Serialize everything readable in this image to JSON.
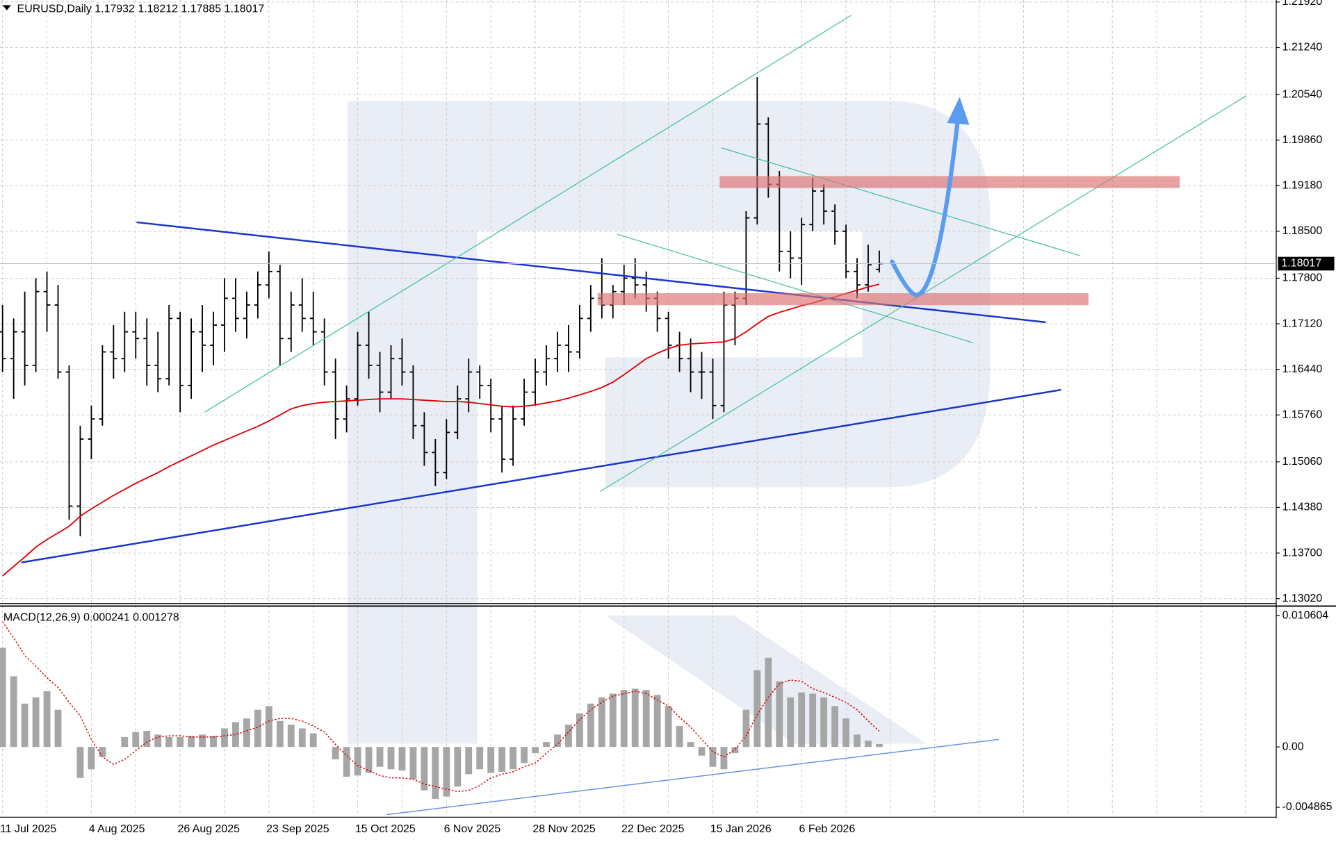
{
  "chart_data": [
    {
      "type": "ohlc",
      "title": "EURUSD,Daily",
      "categories": [
        "11 Jul 2025",
        null,
        null,
        null,
        null,
        null,
        null,
        null,
        "4 Aug 2025",
        null,
        null,
        null,
        null,
        null,
        null,
        null,
        "26 Aug 2025",
        null,
        null,
        null,
        null,
        null,
        null,
        null,
        "23 Sep 2025",
        null,
        null,
        null,
        null,
        null,
        null,
        null,
        "15 Oct 2025",
        null,
        null,
        null,
        null,
        null,
        null,
        null,
        "6 Nov 2025",
        null,
        null,
        null,
        null,
        null,
        null,
        null,
        "28 Nov 2025",
        null,
        null,
        null,
        null,
        null,
        null,
        null,
        "22 Dec 2025",
        null,
        null,
        null,
        null,
        null,
        null,
        null,
        "15 Jan 2026",
        null,
        null,
        null,
        null,
        null,
        null,
        null,
        "6 Feb 2026",
        null,
        null,
        null,
        null,
        null,
        null,
        null
      ],
      "open": [
        1.17,
        1.166,
        1.17,
        1.165,
        1.176,
        1.174,
        1.164,
        1.144,
        1.154,
        1.157,
        1.167,
        1.166,
        1.17,
        1.169,
        1.165,
        1.163,
        1.172,
        1.162,
        1.17,
        1.168,
        1.171,
        1.175,
        1.172,
        1.174,
        1.177,
        1.179,
        1.169,
        1.174,
        1.172,
        1.17,
        1.164,
        1.157,
        1.16,
        1.168,
        1.165,
        1.161,
        1.166,
        1.164,
        1.156,
        1.152,
        1.149,
        1.155,
        1.16,
        1.164,
        1.162,
        1.157,
        1.151,
        1.157,
        1.161,
        1.164,
        1.166,
        1.168,
        1.167,
        1.172,
        1.175,
        1.174,
        1.176,
        1.178,
        1.177,
        1.175,
        1.172,
        1.168,
        1.166,
        1.164,
        1.164,
        1.159,
        1.174,
        1.175,
        1.187,
        1.201,
        1.192,
        1.182,
        1.181,
        1.186,
        1.191,
        1.188,
        1.185,
        1.179,
        1.177,
        1.17932
      ],
      "high": [
        1.174,
        1.172,
        1.176,
        1.178,
        1.179,
        1.177,
        1.165,
        1.156,
        1.159,
        1.168,
        1.171,
        1.173,
        1.173,
        1.172,
        1.17,
        1.174,
        1.173,
        1.172,
        1.174,
        1.173,
        1.178,
        1.178,
        1.176,
        1.179,
        1.182,
        1.18,
        1.176,
        1.178,
        1.176,
        1.172,
        1.166,
        1.162,
        1.17,
        1.173,
        1.167,
        1.168,
        1.169,
        1.165,
        1.158,
        1.154,
        1.157,
        1.162,
        1.166,
        1.165,
        1.163,
        1.159,
        1.159,
        1.163,
        1.166,
        1.168,
        1.17,
        1.171,
        1.174,
        1.177,
        1.181,
        1.177,
        1.18,
        1.181,
        1.179,
        1.176,
        1.173,
        1.17,
        1.169,
        1.167,
        1.166,
        1.176,
        1.176,
        1.188,
        1.208,
        1.202,
        1.194,
        1.185,
        1.187,
        1.193,
        1.192,
        1.189,
        1.186,
        1.181,
        1.183,
        1.18212
      ],
      "low": [
        1.164,
        1.16,
        1.162,
        1.164,
        1.17,
        1.163,
        1.142,
        1.1395,
        1.151,
        1.156,
        1.163,
        1.164,
        1.166,
        1.162,
        1.161,
        1.162,
        1.158,
        1.16,
        1.164,
        1.165,
        1.167,
        1.17,
        1.169,
        1.172,
        1.175,
        1.165,
        1.167,
        1.17,
        1.168,
        1.162,
        1.154,
        1.155,
        1.159,
        1.163,
        1.158,
        1.16,
        1.162,
        1.154,
        1.15,
        1.147,
        1.148,
        1.154,
        1.158,
        1.16,
        1.155,
        1.149,
        1.15,
        1.156,
        1.159,
        1.162,
        1.164,
        1.164,
        1.166,
        1.17,
        1.172,
        1.172,
        1.174,
        1.175,
        1.173,
        1.17,
        1.166,
        1.164,
        1.161,
        1.16,
        1.157,
        1.158,
        1.168,
        1.174,
        1.186,
        1.19,
        1.179,
        1.178,
        1.177,
        1.185,
        1.186,
        1.183,
        1.178,
        1.175,
        1.176,
        1.17885
      ],
      "close": [
        1.166,
        1.17,
        1.165,
        1.176,
        1.174,
        1.164,
        1.144,
        1.154,
        1.157,
        1.167,
        1.166,
        1.17,
        1.169,
        1.165,
        1.163,
        1.172,
        1.162,
        1.17,
        1.168,
        1.171,
        1.175,
        1.172,
        1.174,
        1.177,
        1.179,
        1.169,
        1.174,
        1.172,
        1.17,
        1.164,
        1.157,
        1.16,
        1.168,
        1.165,
        1.161,
        1.166,
        1.164,
        1.156,
        1.152,
        1.149,
        1.155,
        1.16,
        1.164,
        1.162,
        1.157,
        1.151,
        1.157,
        1.161,
        1.164,
        1.166,
        1.168,
        1.167,
        1.172,
        1.175,
        1.174,
        1.176,
        1.178,
        1.177,
        1.175,
        1.172,
        1.168,
        1.166,
        1.164,
        1.164,
        1.159,
        1.174,
        1.175,
        1.187,
        1.201,
        1.192,
        1.182,
        1.181,
        1.186,
        1.191,
        1.188,
        1.185,
        1.179,
        1.177,
        1.18,
        1.18017
      ],
      "color": "#000000",
      "moving_average": {
        "color": "#e00000",
        "values": [
          1.1336,
          1.135,
          1.1364,
          1.1379,
          1.139,
          1.14,
          1.141,
          1.1425,
          1.1436,
          1.1446,
          1.1456,
          1.1465,
          1.1474,
          1.1482,
          1.149,
          1.1499,
          1.1507,
          1.1515,
          1.1523,
          1.1531,
          1.1538,
          1.1545,
          1.1552,
          1.1559,
          1.1567,
          1.1576,
          1.1585,
          1.159,
          1.1593,
          1.1595,
          1.1596,
          1.1597,
          1.1598,
          1.1599,
          1.16,
          1.16,
          1.16,
          1.1599,
          1.1598,
          1.1597,
          1.1596,
          1.1596,
          1.1595,
          1.1593,
          1.1591,
          1.1589,
          1.1588,
          1.1589,
          1.1591,
          1.1594,
          1.1597,
          1.1601,
          1.1606,
          1.1611,
          1.1617,
          1.1625,
          1.1636,
          1.1648,
          1.166,
          1.1668,
          1.1675,
          1.168,
          1.1682,
          1.1683,
          1.1684,
          1.1685,
          1.169,
          1.17,
          1.1712,
          1.1723,
          1.1729,
          1.1734,
          1.1739,
          1.1743,
          1.1748,
          1.1752,
          1.1757,
          1.1762,
          1.1767,
          1.1771
        ]
      },
      "ylim": [
        1.1296,
        1.2195
      ],
      "yticks": [
        {
          "value": 1.2192,
          "label": "1.21920"
        },
        {
          "value": 1.2124,
          "label": "1.21240"
        },
        {
          "value": 1.2054,
          "label": "1.20540"
        },
        {
          "value": 1.1986,
          "label": "1.19860"
        },
        {
          "value": 1.1918,
          "label": "1.19180"
        },
        {
          "value": 1.185,
          "label": "1.18500"
        },
        {
          "value": 1.178,
          "label": "1.17800"
        },
        {
          "value": 1.1712,
          "label": "1.17120"
        },
        {
          "value": 1.1644,
          "label": "1.16440"
        },
        {
          "value": 1.1576,
          "label": "1.15760"
        },
        {
          "value": 1.1506,
          "label": "1.15060"
        },
        {
          "value": 1.1438,
          "label": "1.14380"
        },
        {
          "value": 1.137,
          "label": "1.13700"
        },
        {
          "value": 1.1302,
          "label": "1.13020"
        }
      ],
      "grid": true
    },
    {
      "type": "macd",
      "title": "MACD(12,26,9)",
      "histogram": {
        "color": "#a6a6a6",
        "values": [
          0.008,
          0.0057,
          0.0035,
          0.004,
          0.0045,
          0.003,
          0,
          -0.0025,
          -0.0018,
          -0.0008,
          0,
          0.0008,
          0.0012,
          0.0013,
          0.001,
          0.0008,
          0.0008,
          0.0009,
          0.001,
          0.0009,
          0.0015,
          0.002,
          0.0023,
          0.003,
          0.0033,
          0.0021,
          0.0018,
          0.0015,
          0.0011,
          0,
          -0.001,
          -0.0024,
          -0.0023,
          -0.0021,
          -0.0016,
          -0.0018,
          -0.0019,
          -0.0026,
          -0.0035,
          -0.0042,
          -0.004,
          -0.0032,
          -0.0022,
          -0.0018,
          -0.0021,
          -0.002,
          -0.0018,
          -0.0013,
          -0.0005,
          0.0004,
          0.001,
          0.0018,
          0.0027,
          0.0035,
          0.004,
          0.0043,
          0.0046,
          0.0047,
          0.0046,
          0.0042,
          0.0033,
          0.0017,
          0.0004,
          -0.0007,
          -0.0016,
          -0.0018,
          -0.0005,
          0.003,
          0.0062,
          0.0072,
          0.0053,
          0.004,
          0.0044,
          0.0043,
          0.004,
          0.0033,
          0.0023,
          0.001,
          0.0005,
          0.000241
        ]
      },
      "signal": {
        "color": "#e00000",
        "values": [
          0.0101,
          0.0088,
          0.0074,
          0.0065,
          0.0056,
          0.0048,
          0.0036,
          0.0025,
          0.0006,
          -0.0008,
          -0.0014,
          -0.001,
          -0.0003,
          0.0004,
          0.0008,
          0.0009,
          0.0009,
          0.0008,
          0.0008,
          0.0008,
          0.0009,
          0.001,
          0.0013,
          0.0016,
          0.0021,
          0.0023,
          0.0023,
          0.0021,
          0.0017,
          0.0012,
          0.0002,
          -0.0007,
          -0.0015,
          -0.0019,
          -0.0023,
          -0.0025,
          -0.0025,
          -0.0026,
          -0.003,
          -0.0032,
          -0.0034,
          -0.0036,
          -0.0035,
          -0.0031,
          -0.0025,
          -0.0022,
          -0.002,
          -0.0016,
          -0.0013,
          -0.0005,
          0.0002,
          0.0012,
          0.0022,
          0.003,
          0.0036,
          0.0041,
          0.0043,
          0.0045,
          0.0043,
          0.0038,
          0.0033,
          0.0024,
          0.0016,
          0.0006,
          -0.0004,
          -0.0008,
          -0.0002,
          0.0009,
          0.0026,
          0.004,
          0.0051,
          0.0054,
          0.0053,
          0.0047,
          0.0044,
          0.004,
          0.0036,
          0.003,
          0.0021,
          0.001278
        ]
      },
      "ylim": [
        -0.0056,
        0.0113
      ],
      "yticks": [
        0.010604,
        {
          "value": 0,
          "label": "0.00"
        },
        -0.004865
      ]
    }
  ]
}
